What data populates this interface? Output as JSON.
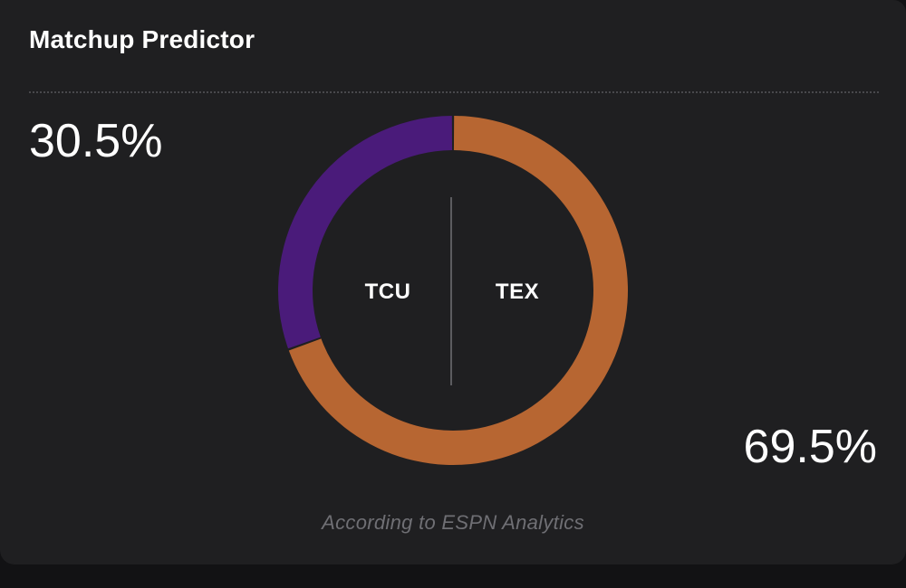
{
  "widget": {
    "title": "Matchup Predictor",
    "footnote": "According to ESPN Analytics"
  },
  "teams": {
    "away": {
      "abbr": "TCU",
      "win_pct_text": "30.5%",
      "color": "#4a1b7a"
    },
    "home": {
      "abbr": "TEX",
      "win_pct_text": "69.5%",
      "color": "#b76632"
    }
  },
  "chart_data": {
    "type": "pie",
    "categories": [
      "TCU",
      "TEX"
    ],
    "values": [
      30.5,
      69.5
    ],
    "colors": [
      "#4a1b7a",
      "#b76632"
    ],
    "title": ""
  }
}
